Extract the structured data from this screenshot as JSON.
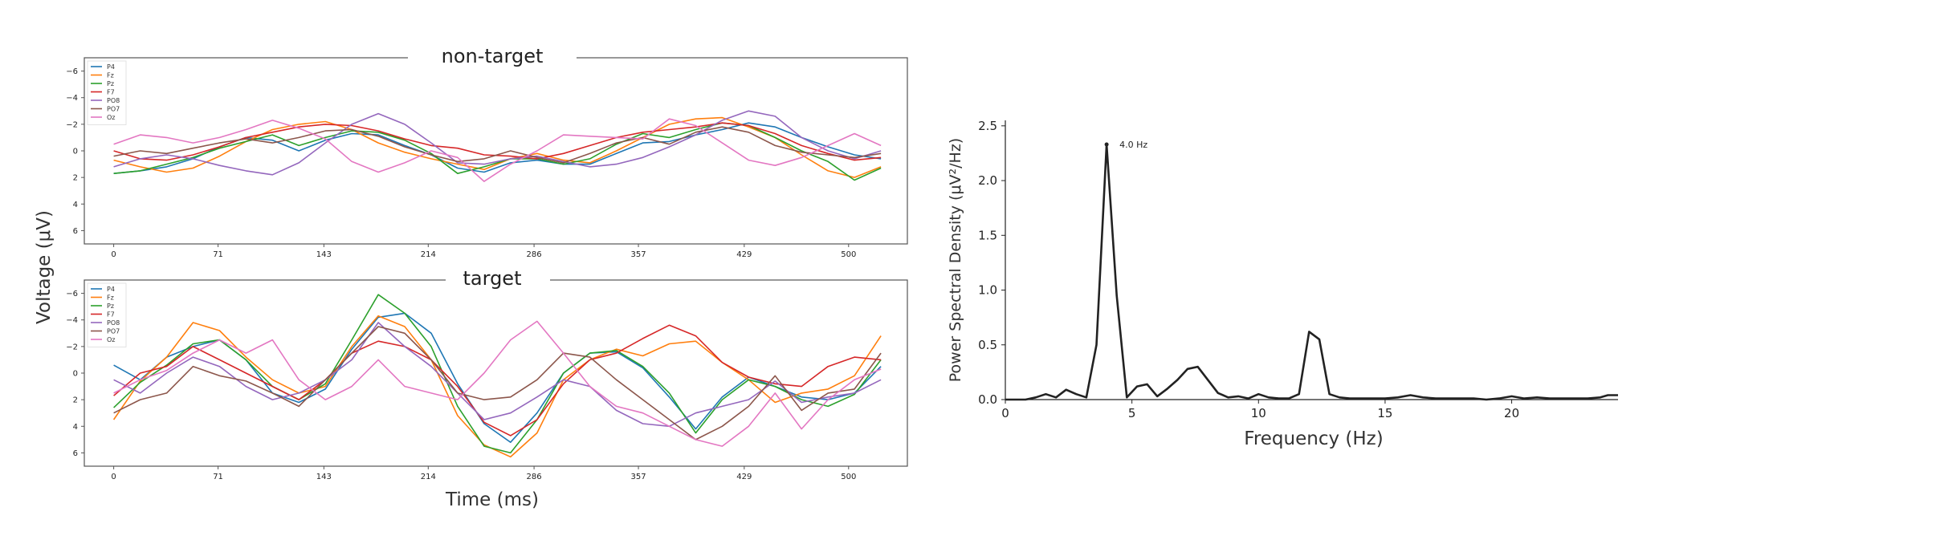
{
  "chart_data": [
    {
      "type": "line",
      "title": "non-target",
      "xlabel": "Time (ms)",
      "ylabel": "Voltage (μV)",
      "y_inverted": true,
      "ylim": [
        7,
        -7
      ],
      "xlim": [
        -20,
        540
      ],
      "x_ticks": [
        0,
        71,
        143,
        214,
        286,
        357,
        429,
        500
      ],
      "y_ticks": [
        -6,
        -4,
        -2,
        0,
        2,
        4,
        6
      ],
      "legend": "top-left",
      "x": [
        0,
        18,
        36,
        54,
        72,
        90,
        108,
        126,
        144,
        162,
        180,
        198,
        216,
        234,
        252,
        270,
        288,
        306,
        324,
        342,
        360,
        378,
        396,
        414,
        432,
        450,
        468,
        486,
        504,
        522
      ],
      "series": [
        {
          "name": "P4",
          "color": "#1f77b4",
          "values": [
            1.7,
            1.5,
            1.2,
            0.6,
            -0.3,
            -1.0,
            -0.8,
            0.0,
            -0.8,
            -1.3,
            -1.2,
            -0.4,
            0.3,
            1.3,
            1.6,
            0.9,
            0.7,
            1.0,
            1.0,
            0.2,
            -0.6,
            -0.7,
            -1.2,
            -1.6,
            -2.1,
            -1.8,
            -1.0,
            -0.3,
            0.3,
            0.6
          ]
        },
        {
          "name": "Fz",
          "color": "#ff7f0e",
          "values": [
            0.7,
            1.2,
            1.6,
            1.3,
            0.4,
            -0.7,
            -1.6,
            -2.0,
            -2.2,
            -1.6,
            -0.6,
            0.1,
            0.6,
            1.0,
            1.4,
            0.6,
            0.2,
            0.7,
            0.9,
            0.0,
            -1.0,
            -2.0,
            -2.4,
            -2.5,
            -1.8,
            -1.0,
            0.3,
            1.5,
            2.0,
            1.2
          ]
        },
        {
          "name": "Pz",
          "color": "#2ca02c",
          "values": [
            1.7,
            1.5,
            1.0,
            0.5,
            -0.2,
            -0.7,
            -1.2,
            -0.4,
            -1.0,
            -1.5,
            -1.4,
            -0.8,
            0.2,
            1.7,
            1.2,
            0.6,
            0.6,
            1.0,
            0.6,
            -0.5,
            -1.3,
            -1.0,
            -1.6,
            -2.1,
            -1.9,
            -1.0,
            0.0,
            0.8,
            2.2,
            1.3
          ]
        },
        {
          "name": "F7",
          "color": "#d62728",
          "values": [
            0.0,
            0.6,
            0.7,
            0.3,
            -0.3,
            -1.0,
            -1.4,
            -1.8,
            -2.0,
            -1.9,
            -1.5,
            -0.9,
            -0.4,
            -0.2,
            0.3,
            0.4,
            0.6,
            0.2,
            -0.4,
            -1.0,
            -1.4,
            -1.6,
            -1.8,
            -2.1,
            -1.9,
            -1.3,
            -0.4,
            0.2,
            0.7,
            0.5
          ]
        },
        {
          "name": "PO8",
          "color": "#9467bd",
          "values": [
            1.2,
            0.6,
            0.3,
            0.6,
            1.1,
            1.5,
            1.8,
            0.9,
            -0.6,
            -2.0,
            -2.8,
            -2.0,
            -0.6,
            0.9,
            1.0,
            0.6,
            0.4,
            0.8,
            1.2,
            1.0,
            0.5,
            -0.3,
            -1.2,
            -2.3,
            -3.0,
            -2.6,
            -1.0,
            0.0,
            0.6,
            0.0
          ]
        },
        {
          "name": "PO7",
          "color": "#8c564b",
          "values": [
            0.4,
            0.0,
            0.2,
            -0.2,
            -0.6,
            -0.9,
            -0.6,
            -1.0,
            -1.5,
            -1.6,
            -1.1,
            -0.3,
            0.3,
            0.8,
            0.6,
            0.0,
            0.5,
            0.9,
            0.2,
            -0.6,
            -1.0,
            -0.5,
            -1.4,
            -1.8,
            -1.4,
            -0.4,
            0.1,
            0.3,
            0.5,
            0.2
          ]
        },
        {
          "name": "Oz",
          "color": "#e377c2",
          "values": [
            -0.5,
            -1.2,
            -1.0,
            -0.6,
            -1.0,
            -1.6,
            -2.3,
            -1.7,
            -0.9,
            0.8,
            1.6,
            0.9,
            0.0,
            0.5,
            2.3,
            1.0,
            0.0,
            -1.2,
            -1.1,
            -1.0,
            -0.9,
            -2.4,
            -1.9,
            -0.6,
            0.7,
            1.1,
            0.5,
            -0.4,
            -1.3,
            -0.4
          ]
        }
      ]
    },
    {
      "type": "line",
      "title": "target",
      "xlabel": "Time (ms)",
      "ylabel": "Voltage (μV)",
      "y_inverted": true,
      "ylim": [
        7,
        -7
      ],
      "xlim": [
        -20,
        540
      ],
      "x_ticks": [
        0,
        71,
        143,
        214,
        286,
        357,
        429,
        500
      ],
      "y_ticks": [
        -6,
        -4,
        -2,
        0,
        2,
        4,
        6
      ],
      "legend": "top-left",
      "x": [
        0,
        18,
        36,
        54,
        72,
        90,
        108,
        126,
        144,
        162,
        180,
        198,
        216,
        234,
        252,
        270,
        288,
        306,
        324,
        342,
        360,
        378,
        396,
        414,
        432,
        450,
        468,
        486,
        504,
        522
      ],
      "series": [
        {
          "name": "P4",
          "color": "#1f77b4",
          "values": [
            -0.6,
            0.5,
            -1.2,
            -2.0,
            -2.5,
            -1.0,
            1.5,
            2.2,
            1.2,
            -1.8,
            -4.2,
            -4.5,
            -3.0,
            0.8,
            3.8,
            5.2,
            3.0,
            0.0,
            -1.5,
            -1.6,
            -0.4,
            1.8,
            4.2,
            1.8,
            0.3,
            1.0,
            1.8,
            2.0,
            1.5,
            -0.5
          ]
        },
        {
          "name": "Fz",
          "color": "#ff7f0e",
          "values": [
            3.5,
            0.6,
            -1.2,
            -3.8,
            -3.2,
            -1.2,
            0.5,
            1.5,
            1.0,
            -2.0,
            -4.3,
            -3.5,
            -1.0,
            3.2,
            5.4,
            6.3,
            4.5,
            0.5,
            -1.0,
            -1.8,
            -1.3,
            -2.2,
            -2.4,
            -0.8,
            0.5,
            2.2,
            1.5,
            1.2,
            0.2,
            -2.8
          ]
        },
        {
          "name": "Pz",
          "color": "#2ca02c",
          "values": [
            2.6,
            0.7,
            -0.6,
            -2.2,
            -2.5,
            -1.0,
            1.0,
            2.0,
            0.8,
            -2.5,
            -5.9,
            -4.5,
            -2.0,
            2.5,
            5.5,
            6.0,
            3.5,
            0.0,
            -1.5,
            -1.7,
            -0.5,
            1.5,
            4.5,
            2.0,
            0.5,
            1.0,
            2.0,
            2.5,
            1.6,
            -1.0
          ]
        },
        {
          "name": "F7",
          "color": "#d62728",
          "values": [
            1.7,
            0.0,
            -0.5,
            -2.0,
            -1.0,
            0.0,
            1.0,
            2.0,
            0.5,
            -1.5,
            -2.4,
            -2.0,
            -1.0,
            1.0,
            3.7,
            4.7,
            3.5,
            0.8,
            -1.0,
            -1.5,
            -2.6,
            -3.6,
            -2.8,
            -0.8,
            0.3,
            0.8,
            1.0,
            -0.5,
            -1.2,
            -1.0
          ]
        },
        {
          "name": "PO8",
          "color": "#9467bd",
          "values": [
            0.5,
            1.5,
            0.0,
            -1.2,
            -0.5,
            1.0,
            2.0,
            1.5,
            0.5,
            -1.0,
            -3.8,
            -2.0,
            -0.5,
            1.5,
            3.5,
            3.0,
            1.8,
            0.5,
            1.0,
            2.8,
            3.8,
            4.0,
            3.0,
            2.5,
            2.0,
            0.6,
            2.2,
            1.8,
            1.5,
            0.5
          ]
        },
        {
          "name": "PO7",
          "color": "#8c564b",
          "values": [
            3.0,
            2.0,
            1.5,
            -0.5,
            0.2,
            0.6,
            1.5,
            2.5,
            0.5,
            -1.5,
            -3.5,
            -3.0,
            -1.0,
            1.5,
            2.0,
            1.8,
            0.5,
            -1.5,
            -1.2,
            0.5,
            2.0,
            3.5,
            5.0,
            4.0,
            2.5,
            0.2,
            2.8,
            1.5,
            1.2,
            -1.5
          ]
        },
        {
          "name": "Oz",
          "color": "#e377c2",
          "values": [
            1.5,
            0.5,
            -0.2,
            -1.5,
            -2.5,
            -1.5,
            -2.5,
            0.5,
            2.0,
            1.0,
            -1.0,
            1.0,
            1.5,
            2.0,
            0.0,
            -2.5,
            -3.9,
            -1.5,
            1.0,
            2.5,
            3.0,
            4.0,
            5.0,
            5.5,
            4.0,
            1.5,
            4.2,
            2.0,
            0.5,
            -0.3
          ]
        }
      ]
    },
    {
      "type": "line",
      "title": "",
      "xlabel": "Frequency (Hz)",
      "ylabel": "Power Spectral Density (μV²/Hz)",
      "xlim": [
        0,
        24.2
      ],
      "ylim": [
        0,
        2.55
      ],
      "x_ticks": [
        0,
        5,
        10,
        15,
        20
      ],
      "y_ticks": [
        0.0,
        0.5,
        1.0,
        1.5,
        2.0,
        2.5
      ],
      "annotation": {
        "text": "4.0 Hz",
        "x": 4.0,
        "y": 2.33
      },
      "color": "#222222",
      "x": [
        0,
        0.4,
        0.8,
        1.2,
        1.6,
        2.0,
        2.4,
        2.8,
        3.2,
        3.6,
        4.0,
        4.4,
        4.8,
        5.2,
        5.6,
        6.0,
        6.4,
        6.8,
        7.2,
        7.6,
        8.0,
        8.4,
        8.8,
        9.2,
        9.6,
        10.0,
        10.4,
        10.8,
        11.2,
        11.6,
        12.0,
        12.4,
        12.8,
        13.2,
        13.6,
        14.0,
        14.5,
        15.0,
        15.5,
        16.0,
        16.5,
        17.0,
        17.5,
        18.0,
        18.5,
        19.0,
        19.5,
        20.0,
        20.5,
        21.0,
        21.5,
        22.0,
        22.5,
        23.0,
        23.5,
        23.8,
        24.2
      ],
      "values": [
        0.0,
        0.0,
        0.0,
        0.02,
        0.05,
        0.02,
        0.09,
        0.05,
        0.02,
        0.5,
        2.33,
        0.95,
        0.02,
        0.12,
        0.14,
        0.03,
        0.1,
        0.18,
        0.28,
        0.3,
        0.18,
        0.06,
        0.02,
        0.03,
        0.01,
        0.05,
        0.02,
        0.01,
        0.01,
        0.05,
        0.62,
        0.55,
        0.05,
        0.02,
        0.01,
        0.01,
        0.01,
        0.01,
        0.02,
        0.04,
        0.02,
        0.01,
        0.01,
        0.01,
        0.01,
        0.0,
        0.01,
        0.03,
        0.01,
        0.02,
        0.01,
        0.01,
        0.01,
        0.01,
        0.02,
        0.04,
        0.04
      ]
    }
  ]
}
